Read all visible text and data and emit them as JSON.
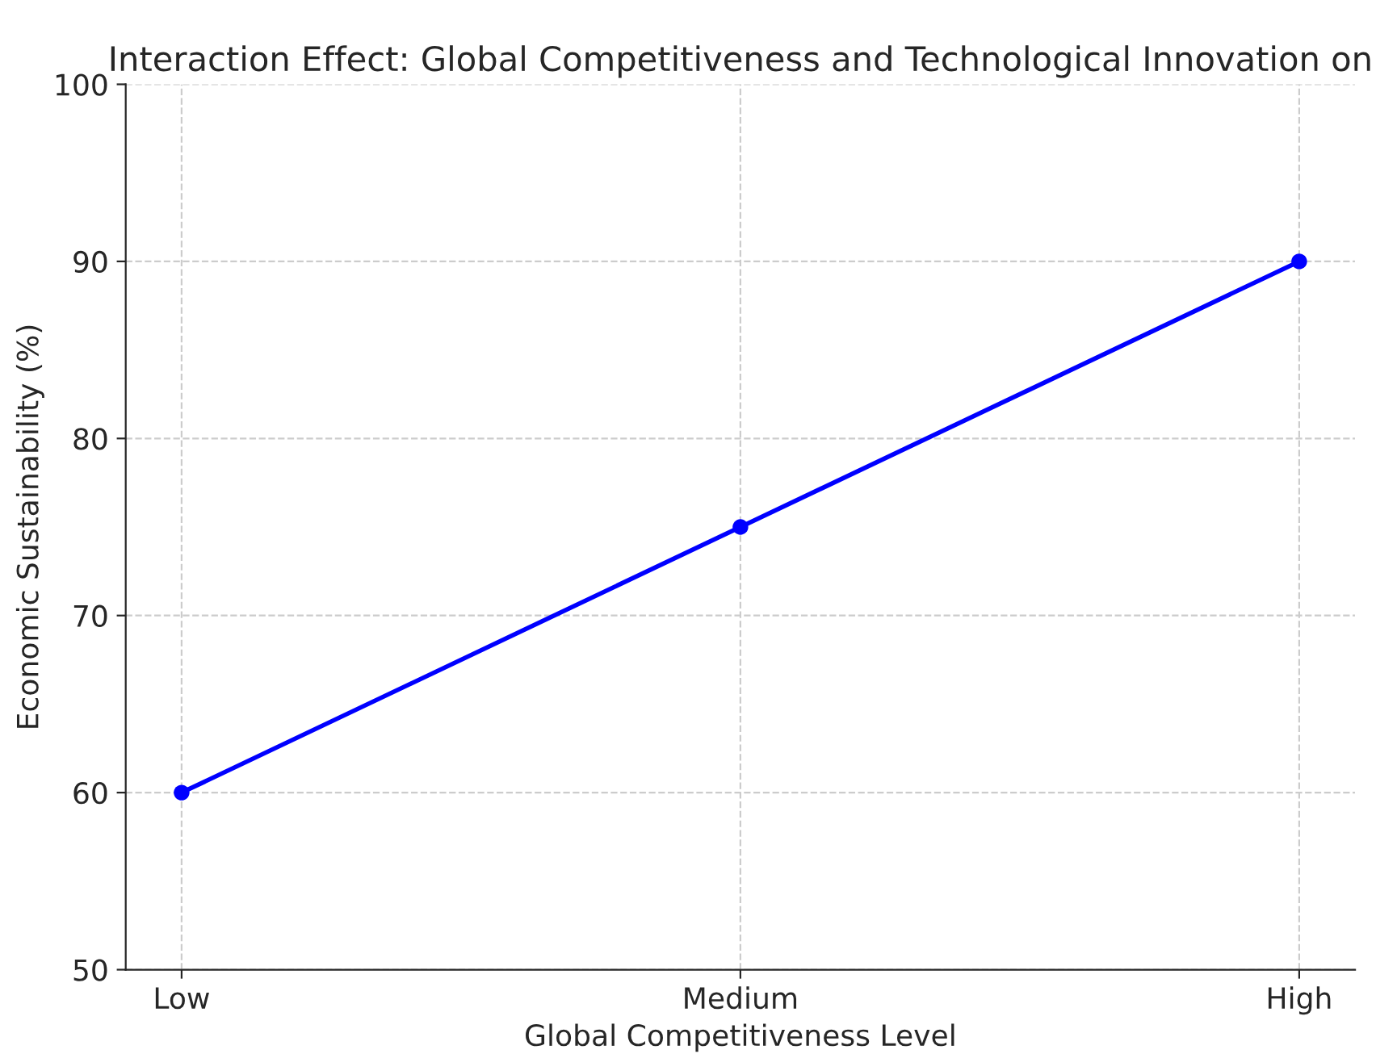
{
  "chart_data": {
    "type": "line",
    "title": "Interaction Effect: Global Competitiveness and Technological Innovation on",
    "xlabel": "Global Competitiveness Level",
    "ylabel": "Economic Sustainability (%)",
    "categories": [
      "Low",
      "Medium",
      "High"
    ],
    "series": [
      {
        "color": "#0000ff",
        "values": [
          60,
          75,
          90
        ]
      }
    ],
    "ylim": [
      50,
      100
    ],
    "yticks": [
      50,
      60,
      70,
      80,
      90,
      100
    ],
    "grid": true,
    "marker": "circle",
    "line_style": "solid"
  }
}
